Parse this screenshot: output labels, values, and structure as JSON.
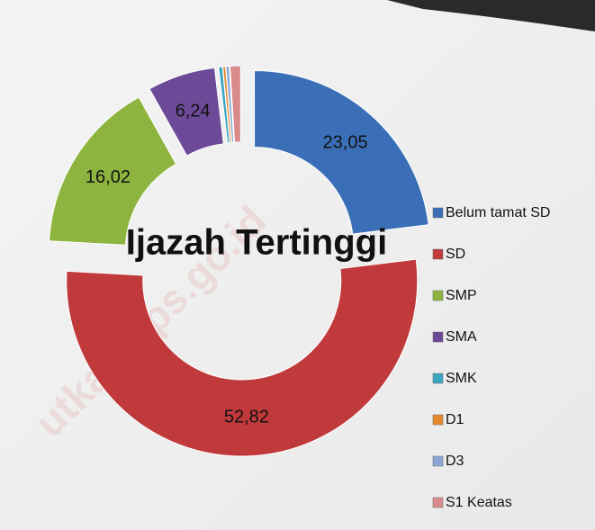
{
  "chart_data": {
    "type": "donut",
    "title": "Ijazah Tertinggi",
    "categories": [
      "Belum tamat SD",
      "SD",
      "SMP",
      "SMA",
      "SMK",
      "D1",
      "D3",
      "S1 Keatas"
    ],
    "values": [
      23.05,
      52.82,
      16.02,
      6.24,
      0.35,
      0.25,
      0.3,
      0.97
    ],
    "value_labels": [
      "23,05",
      "52,82",
      "16,02",
      "6,24",
      null,
      null,
      null,
      null
    ],
    "colors": [
      "#3a6fb7",
      "#c0393b",
      "#8db43e",
      "#6d4a97",
      "#3aa6c1",
      "#e6892d",
      "#8ba7d5",
      "#d98b8b"
    ],
    "legend": "right",
    "watermark": "utkab.bps.go.id"
  }
}
